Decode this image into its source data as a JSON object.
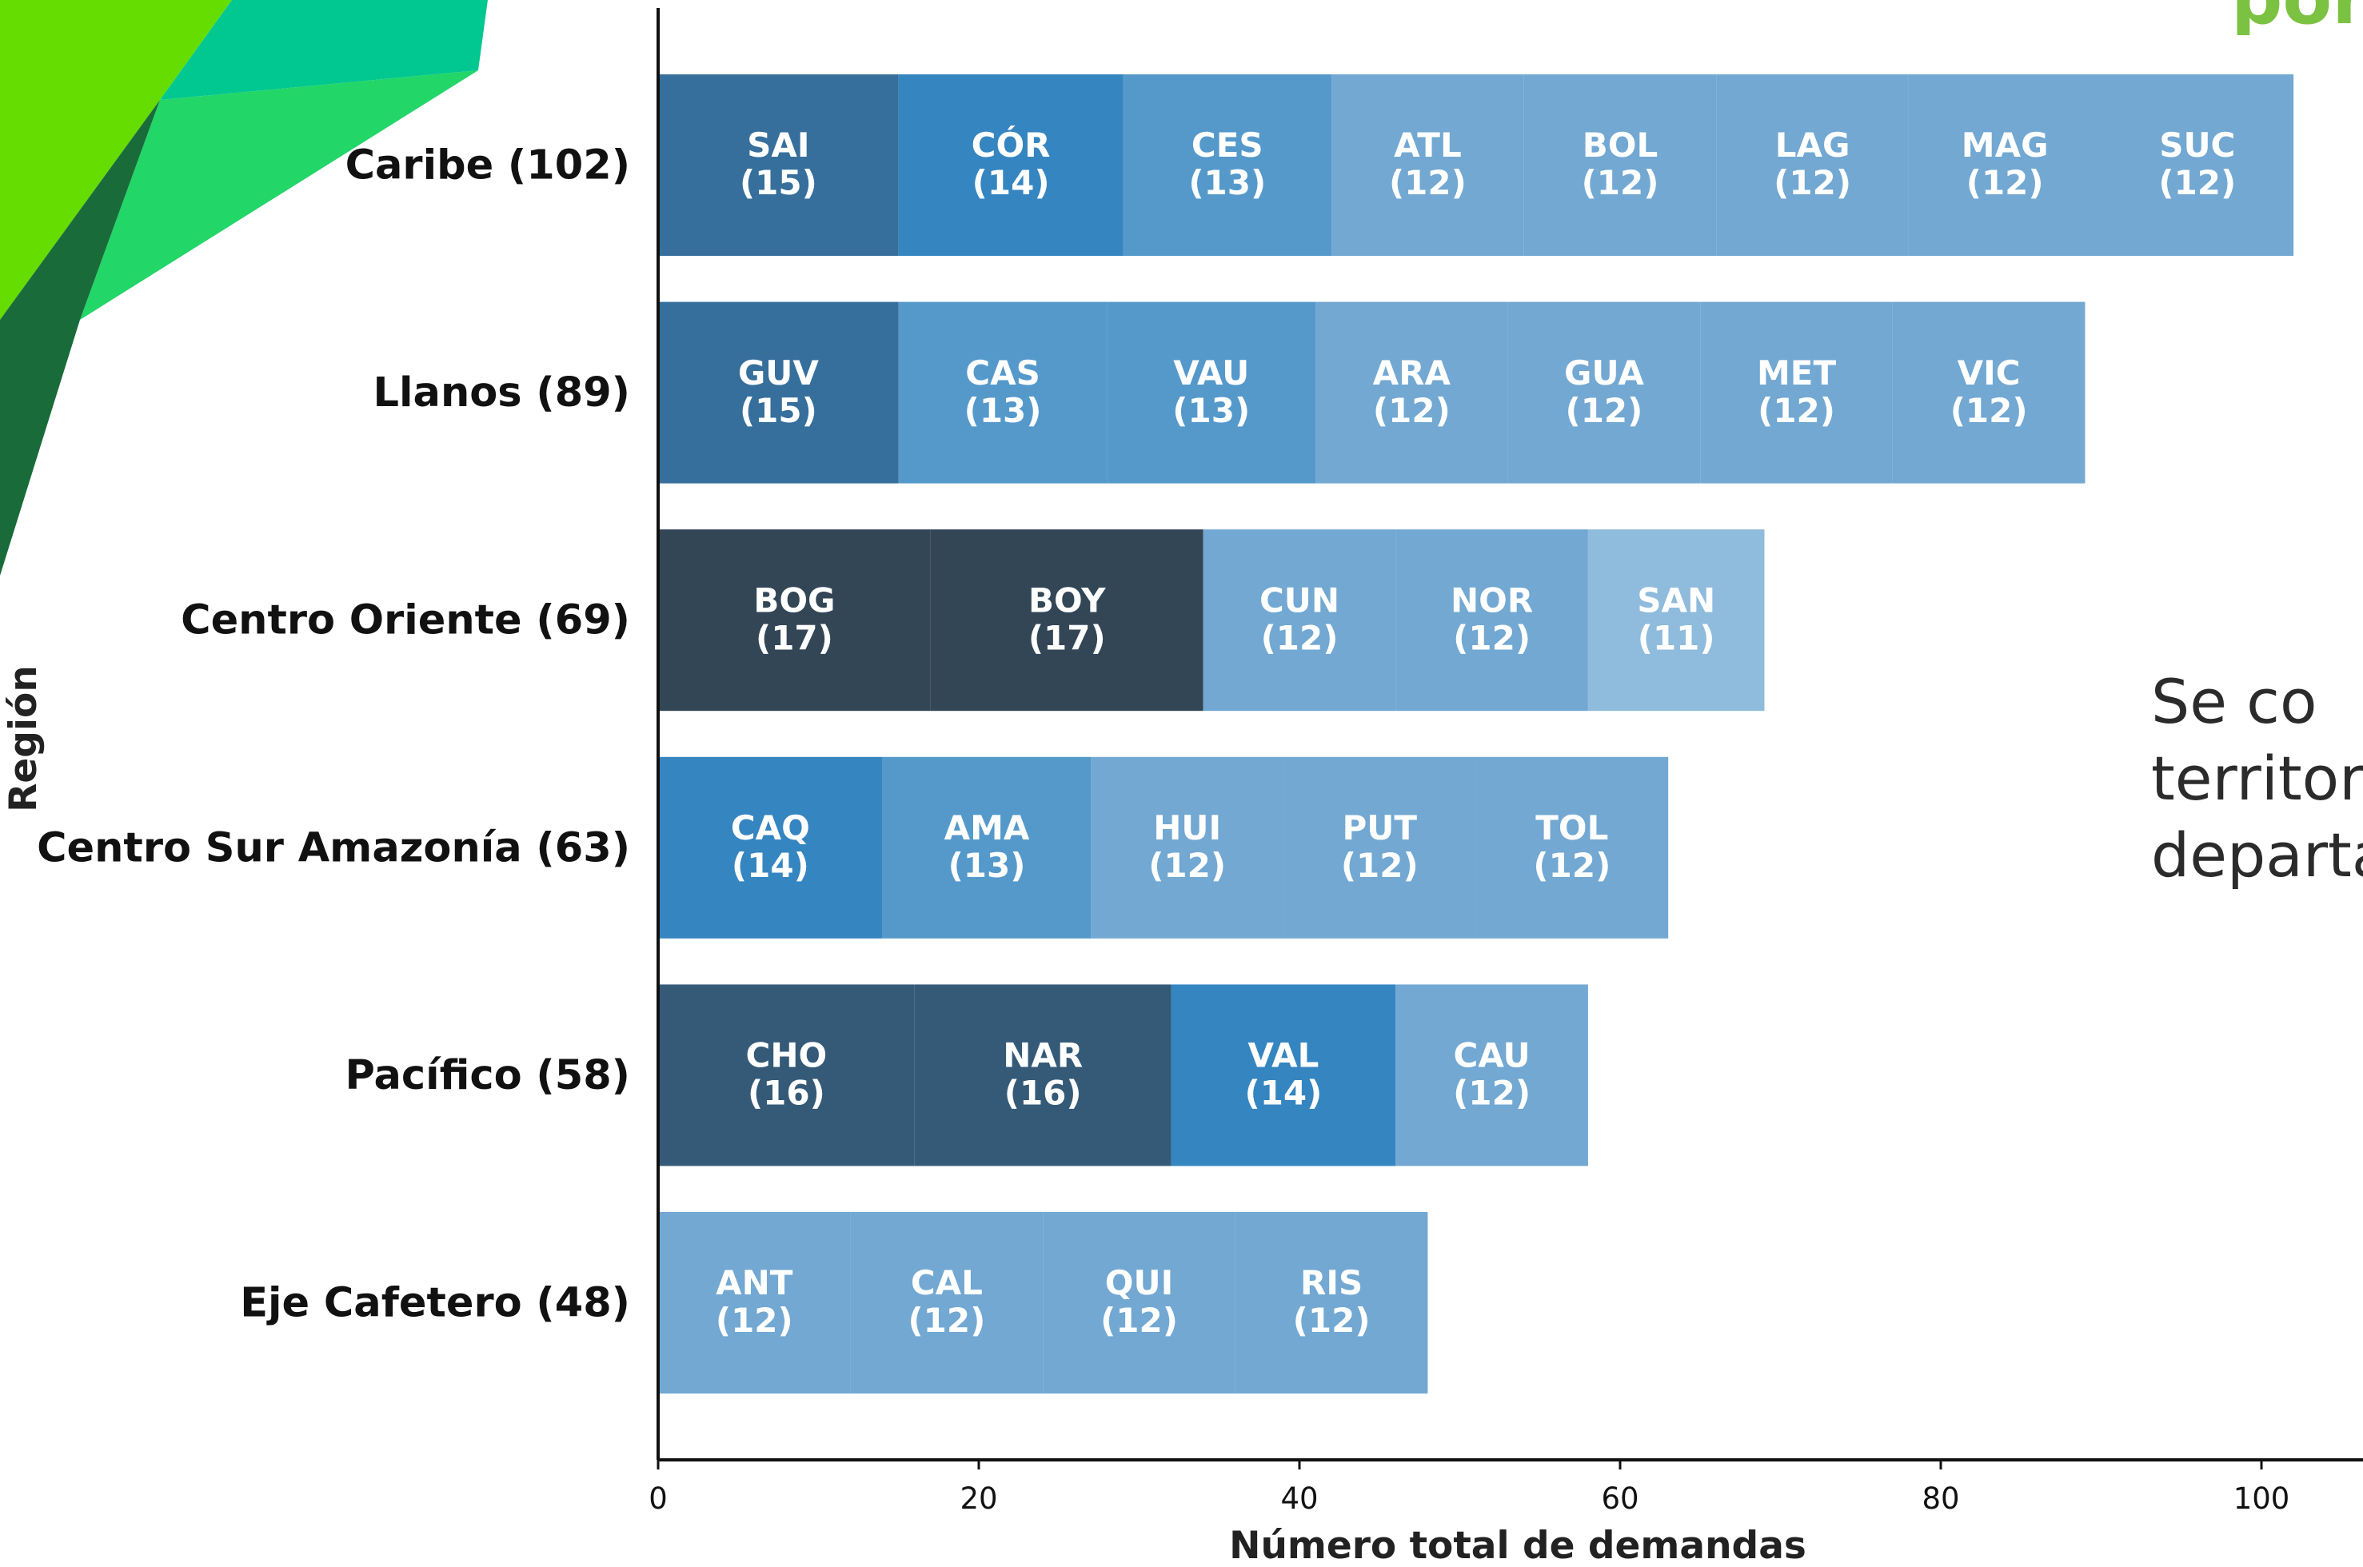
{
  "corner_text": "por",
  "side_text": [
    "Se     co",
    "territori",
    "departa"
  ],
  "colors": {
    "c17": "#334656",
    "c16": "#355a78",
    "c15": "#366f9b",
    "c14": "#3585c0",
    "c13": "#5599cb",
    "c12": "#72a8d2",
    "c11": "#8fbbdc",
    "axis": "#111111",
    "deco_lime": "#66dd00",
    "deco_teal": "#00c890",
    "deco_green": "#22d668",
    "deco_dark": "#1a6b3a"
  },
  "chart_data": {
    "type": "bar",
    "orientation": "horizontal",
    "stacked": true,
    "xlabel": "Número total de demandas",
    "ylabel": "Región",
    "xlim": [
      0,
      106
    ],
    "xticks": [
      0,
      20,
      40,
      60,
      80,
      100
    ],
    "grid": false,
    "categories": [
      {
        "label": "Caribe (102)",
        "total": 102,
        "segments": [
          {
            "code": "SAI",
            "value": 15,
            "label": "SAI\n(15)"
          },
          {
            "code": "CÓR",
            "value": 14,
            "label": "CÓR\n(14)"
          },
          {
            "code": "CES",
            "value": 13,
            "label": "CES\n(13)"
          },
          {
            "code": "ATL",
            "value": 12,
            "label": "ATL\n(12)"
          },
          {
            "code": "BOL",
            "value": 12,
            "label": "BOL\n(12)"
          },
          {
            "code": "LAG",
            "value": 12,
            "label": "LAG\n(12)"
          },
          {
            "code": "MAG",
            "value": 12,
            "label": "MAG\n(12)"
          },
          {
            "code": "SUC",
            "value": 12,
            "label": "SUC\n(12)"
          }
        ]
      },
      {
        "label": "Llanos (89)",
        "total": 89,
        "segments": [
          {
            "code": "GUV",
            "value": 15,
            "label": "GUV\n(15)"
          },
          {
            "code": "CAS",
            "value": 13,
            "label": "CAS\n(13)"
          },
          {
            "code": "VAU",
            "value": 13,
            "label": "VAU\n(13)"
          },
          {
            "code": "ARA",
            "value": 12,
            "label": "ARA\n(12)"
          },
          {
            "code": "GUA",
            "value": 12,
            "label": "GUA\n(12)"
          },
          {
            "code": "MET",
            "value": 12,
            "label": "MET\n(12)"
          },
          {
            "code": "VIC",
            "value": 12,
            "label": "VIC\n(12)"
          }
        ]
      },
      {
        "label": "Centro Oriente (69)",
        "total": 69,
        "segments": [
          {
            "code": "BOG",
            "value": 17,
            "label": "BOG\n(17)"
          },
          {
            "code": "BOY",
            "value": 17,
            "label": "BOY\n(17)"
          },
          {
            "code": "CUN",
            "value": 12,
            "label": "CUN\n(12)"
          },
          {
            "code": "NOR",
            "value": 12,
            "label": "NOR\n(12)"
          },
          {
            "code": "SAN",
            "value": 11,
            "label": "SAN\n(11)"
          }
        ]
      },
      {
        "label": "Centro Sur Amazonía (63)",
        "total": 63,
        "segments": [
          {
            "code": "CAQ",
            "value": 14,
            "label": "CAQ\n(14)"
          },
          {
            "code": "AMA",
            "value": 13,
            "label": "AMA\n(13)"
          },
          {
            "code": "HUI",
            "value": 12,
            "label": "HUI\n(12)"
          },
          {
            "code": "PUT",
            "value": 12,
            "label": "PUT\n(12)"
          },
          {
            "code": "TOL",
            "value": 12,
            "label": "TOL\n(12)"
          }
        ]
      },
      {
        "label": "Pacífico (58)",
        "total": 58,
        "segments": [
          {
            "code": "CHO",
            "value": 16,
            "label": "CHO\n(16)"
          },
          {
            "code": "NAR",
            "value": 16,
            "label": "NAR\n(16)"
          },
          {
            "code": "VAL",
            "value": 14,
            "label": "VAL\n(14)"
          },
          {
            "code": "CAU",
            "value": 12,
            "label": "CAU\n(12)"
          }
        ]
      },
      {
        "label": "Eje Cafetero (48)",
        "total": 48,
        "segments": [
          {
            "code": "ANT",
            "value": 12,
            "label": "ANT\n(12)"
          },
          {
            "code": "CAL",
            "value": 12,
            "label": "CAL\n(12)"
          },
          {
            "code": "QUI",
            "value": 12,
            "label": "QUI\n(12)"
          },
          {
            "code": "RIS",
            "value": 12,
            "label": "RIS\n(12)"
          }
        ]
      }
    ]
  }
}
